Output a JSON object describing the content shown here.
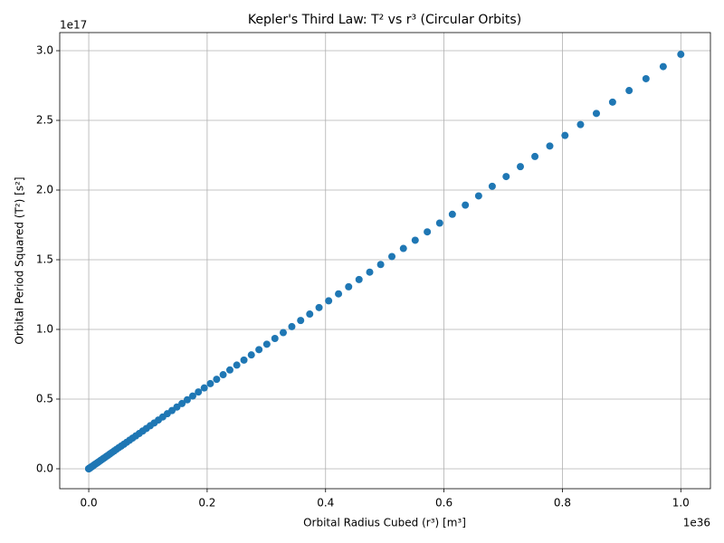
{
  "chart_data": {
    "type": "scatter",
    "title": "Kepler's Third Law: T² vs r³ (Circular Orbits)",
    "x_label": "Orbital Radius Cubed (r³) [m³]",
    "y_label": "Orbital Period Squared (T²) [s²]",
    "x_offset_label": "1e36",
    "y_offset_label": "1e17",
    "grid": true,
    "color": "#1f77b4",
    "xlim": [
      -0.049,
      1.05
    ],
    "ylim": [
      -0.143,
      3.13
    ],
    "xticks": [
      {
        "value": 0,
        "label": "0.0"
      },
      0.2,
      0.4,
      0.6,
      0.8,
      {
        "value": 1,
        "label": "1.0"
      }
    ],
    "yticks": [
      {
        "value": 0,
        "label": "0.0"
      },
      0.5,
      {
        "value": 1,
        "label": "1.0"
      },
      1.5,
      {
        "value": 2,
        "label": "2.0"
      },
      2.5,
      {
        "value": 3,
        "label": "3.0"
      }
    ],
    "x": [
      1e-06,
      8e-06,
      2.7e-05,
      6.4e-05,
      0.000125,
      0.000216,
      0.000343,
      0.000512,
      0.000729,
      0.001,
      0.001331,
      0.001728,
      0.002197,
      0.002744,
      0.003375,
      0.004096,
      0.004913,
      0.005832,
      0.006859,
      0.008,
      0.009261,
      0.010648,
      0.012167,
      0.013824,
      0.015625,
      0.017576,
      0.019683,
      0.021952,
      0.024389,
      0.027,
      0.029791,
      0.032768,
      0.035937,
      0.039304,
      0.042875,
      0.046656,
      0.050653,
      0.054872,
      0.059319,
      0.064,
      0.068921,
      0.074088,
      0.079507,
      0.085184,
      0.091125,
      0.097336,
      0.103823,
      0.110592,
      0.117649,
      0.125,
      0.132651,
      0.140608,
      0.148877,
      0.157464,
      0.166375,
      0.175616,
      0.185193,
      0.195112,
      0.205379,
      0.216,
      0.226981,
      0.238328,
      0.250047,
      0.262144,
      0.274625,
      0.287496,
      0.300763,
      0.314432,
      0.328509,
      0.343,
      0.357911,
      0.373248,
      0.389017,
      0.405224,
      0.421875,
      0.438976,
      0.456533,
      0.474552,
      0.493039,
      0.512,
      0.531441,
      0.551368,
      0.571787,
      0.592704,
      0.614125,
      0.636056,
      0.658503,
      0.681472,
      0.704969,
      0.729,
      0.753571,
      0.778688,
      0.804357,
      0.830584,
      0.857375,
      0.884736,
      0.912673,
      0.941192,
      0.970299,
      1.0
    ],
    "values": [
      0,
      0,
      0,
      0,
      0,
      0.001,
      0.001,
      0.002,
      0.002,
      0.003,
      0.004,
      0.005,
      0.007,
      0.008,
      0.01,
      0.012,
      0.015,
      0.017,
      0.02,
      0.024,
      0.028,
      0.032,
      0.036,
      0.041,
      0.046,
      0.052,
      0.059,
      0.065,
      0.073,
      0.08,
      0.089,
      0.097,
      0.107,
      0.117,
      0.128,
      0.139,
      0.151,
      0.163,
      0.176,
      0.19,
      0.205,
      0.22,
      0.236,
      0.253,
      0.271,
      0.289,
      0.309,
      0.329,
      0.35,
      0.372,
      0.395,
      0.418,
      0.443,
      0.468,
      0.495,
      0.522,
      0.551,
      0.58,
      0.611,
      0.642,
      0.675,
      0.709,
      0.744,
      0.78,
      0.817,
      0.855,
      0.894,
      0.935,
      0.977,
      1.02,
      1.064,
      1.11,
      1.157,
      1.205,
      1.255,
      1.306,
      1.358,
      1.411,
      1.466,
      1.523,
      1.581,
      1.64,
      1.7,
      1.763,
      1.826,
      1.892,
      1.958,
      2.027,
      2.097,
      2.168,
      2.241,
      2.316,
      2.392,
      2.47,
      2.55,
      2.631,
      2.714,
      2.799,
      2.886,
      2.974
    ]
  }
}
